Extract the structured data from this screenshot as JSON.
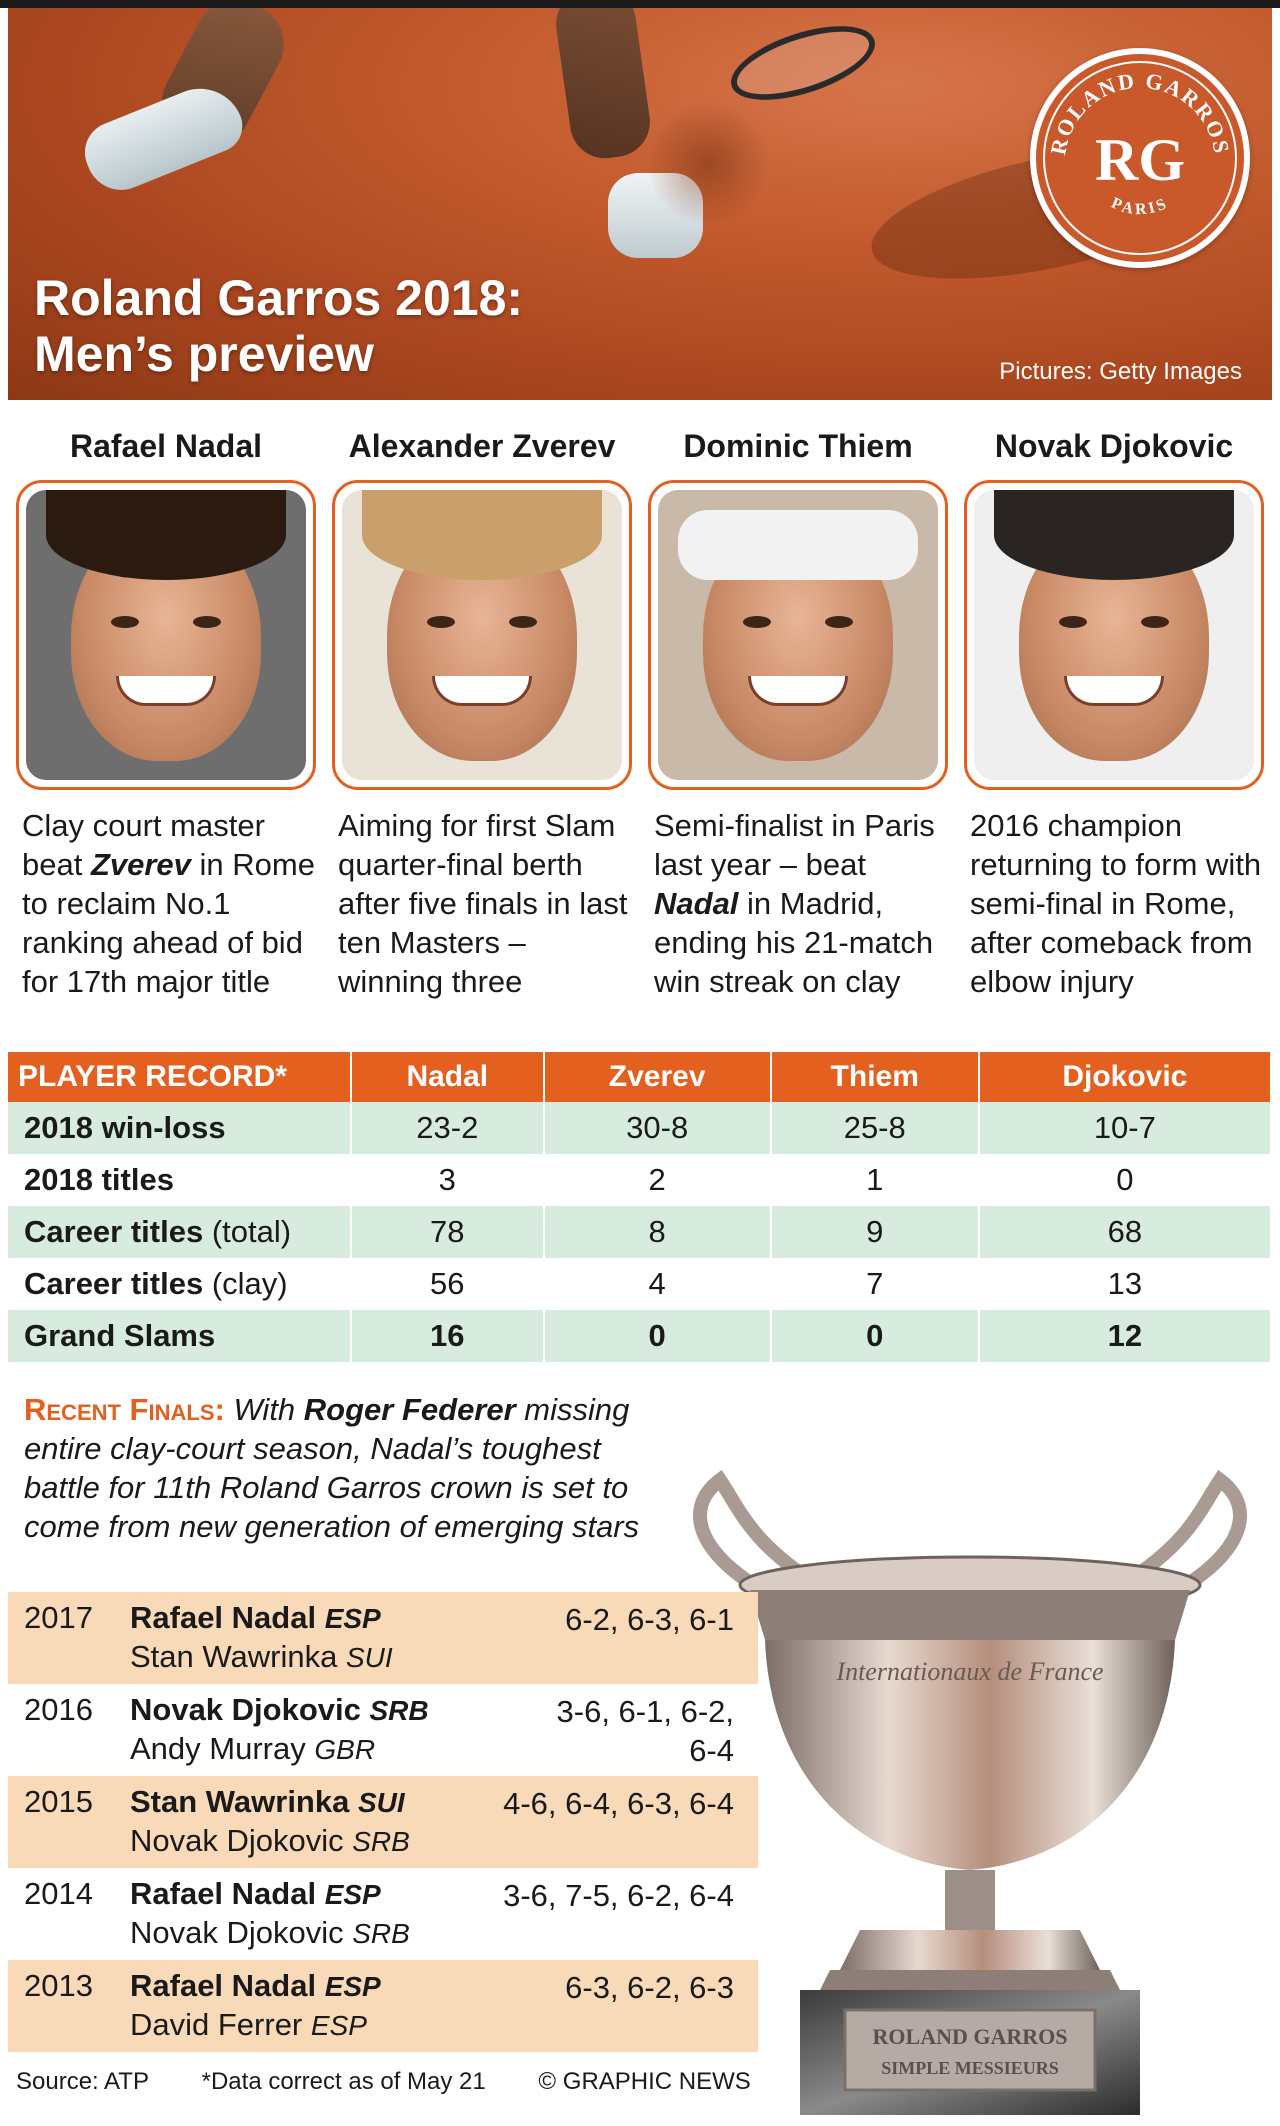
{
  "header": {
    "title_line1": "Roland Garros 2018:",
    "title_line2": "Men’s preview",
    "credit": "Pictures: Getty Images"
  },
  "logo": {
    "top_text": "ROLAND GARROS",
    "monogram": "RG",
    "bottom_text": "PARIS",
    "color": "#c9582b"
  },
  "players": [
    {
      "name": "Rafael Nadal",
      "desc_pre": "Clay court master beat ",
      "desc_bold": "Zverev",
      "desc_post": " in Rome to reclaim No.1 ranking ahead of bid for 17th major title",
      "hair": "#2b1a10",
      "bg": "#6e6e6e"
    },
    {
      "name": "Alexander Zverev",
      "desc_pre": "Aiming for first Slam quarter-final berth after five finals in last ten Masters – winning three",
      "desc_bold": "",
      "desc_post": "",
      "hair": "#c9a06b",
      "bg": "#e9e2d7"
    },
    {
      "name": "Dominic Thiem",
      "desc_pre": "Semi-finalist in Paris last year – beat ",
      "desc_bold": "Nadal",
      "desc_post": " in Madrid, ending his 21-match win streak on clay",
      "hair": "#f2f2f2",
      "bg": "#c8b9a8"
    },
    {
      "name": "Novak Djokovic",
      "desc_pre": "2016 champion returning to form with semi-final in Rome, after comeback from elbow injury",
      "desc_bold": "",
      "desc_post": "",
      "hair": "#2a2522",
      "bg": "#efefef"
    }
  ],
  "record": {
    "header": [
      "PLAYER RECORD*",
      "Nadal",
      "Zverev",
      "Thiem",
      "Djokovic"
    ],
    "rows": [
      {
        "label": "2018 win-loss",
        "suffix": "",
        "values": [
          "23-2",
          "30-8",
          "25-8",
          "10-7"
        ]
      },
      {
        "label": "2018 titles",
        "suffix": "",
        "values": [
          "3",
          "2",
          "1",
          "0"
        ]
      },
      {
        "label": "Career titles",
        "suffix": " (total)",
        "values": [
          "78",
          "8",
          "9",
          "68"
        ]
      },
      {
        "label": "Career titles",
        "suffix": " (clay)",
        "values": [
          "56",
          "4",
          "7",
          "13"
        ]
      },
      {
        "label": "Grand Slams",
        "suffix": "",
        "values": [
          "16",
          "0",
          "0",
          "12"
        ]
      }
    ]
  },
  "recent": {
    "head": "Recent Finals:",
    "text_pre": " With ",
    "bold": "Roger Federer",
    "text_post": " missing entire clay-court season, Nadal’s toughest battle for 11th Roland Garros crown is set to come from new generation of emerging stars"
  },
  "finals": [
    {
      "year": "2017",
      "winner": "Rafael Nadal",
      "winner_c": "ESP",
      "runner": "Stan Wawrinka",
      "runner_c": "SUI",
      "score1": "6-2, 6-3, 6-1",
      "score2": ""
    },
    {
      "year": "2016",
      "winner": "Novak Djokovic",
      "winner_c": "SRB",
      "runner": "Andy Murray",
      "runner_c": "GBR",
      "score1": "3-6, 6-1, 6-2,",
      "score2": "6-4"
    },
    {
      "year": "2015",
      "winner": "Stan Wawrinka",
      "winner_c": "SUI",
      "runner": "Novak Djokovic",
      "runner_c": "SRB",
      "score1": "4-6, 6-4, 6-3, 6-4",
      "score2": ""
    },
    {
      "year": "2014",
      "winner": "Rafael Nadal",
      "winner_c": "ESP",
      "runner": "Novak Djokovic",
      "runner_c": "SRB",
      "score1": "3-6, 7-5, 6-2, 6-4",
      "score2": ""
    },
    {
      "year": "2013",
      "winner": "Rafael Nadal",
      "winner_c": "ESP",
      "runner": "David Ferrer",
      "runner_c": "ESP",
      "score1": "6-3, 6-2, 6-3",
      "score2": ""
    }
  ],
  "trophy": {
    "engraving": "Internationaux de France",
    "plate1": "ROLAND GARROS",
    "plate2": "SIMPLE MESSIEURS"
  },
  "footer": {
    "source": "Source: ATP",
    "note": "*Data correct as of May 21",
    "copyright": "© GRAPHIC NEWS"
  },
  "colors": {
    "accent": "#e3601e",
    "row_green": "#d7ecdf",
    "row_peach": "#f8d9b8"
  }
}
